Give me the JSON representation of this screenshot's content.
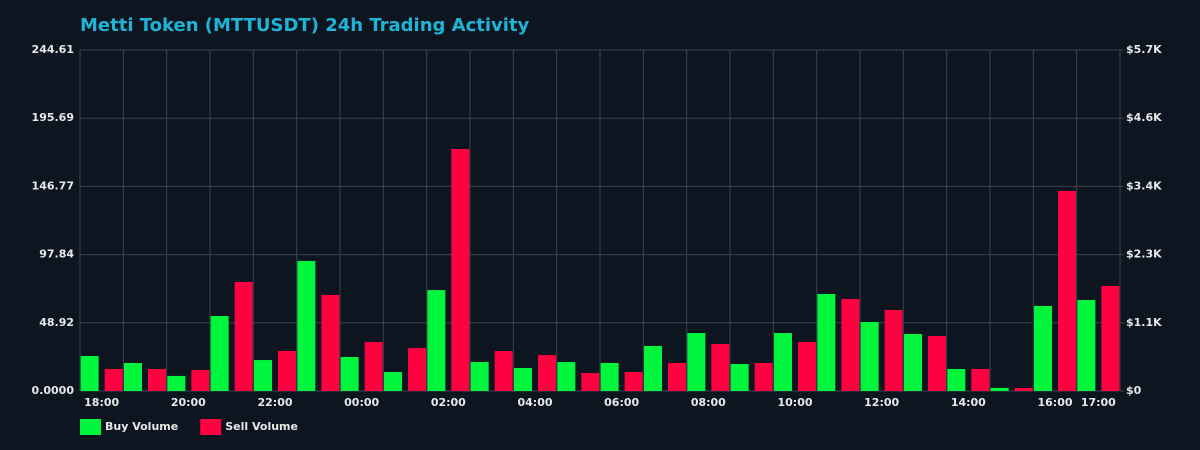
{
  "chart_data": {
    "type": "bar",
    "title": "Metti Token (MTTUSDT) 24h Trading Activity",
    "categories": [
      "18:00",
      null,
      "20:00",
      null,
      "22:00",
      null,
      "00:00",
      null,
      "02:00",
      null,
      "04:00",
      null,
      "06:00",
      null,
      "08:00",
      null,
      "10:00",
      null,
      "12:00",
      null,
      "14:00",
      null,
      "16:00",
      "17:00"
    ],
    "series": [
      {
        "name": "Buy Volume",
        "color": "#00f53d",
        "values": [
          25.1,
          20.1,
          10.8,
          53.8,
          22.2,
          93.3,
          24.4,
          13.6,
          72.4,
          20.8,
          16.5,
          20.8,
          20.1,
          32.3,
          41.6,
          19.4,
          41.6,
          69.6,
          49.5,
          40.9,
          15.8,
          2.2,
          61.0,
          65.3
        ]
      },
      {
        "name": "Sell Volume",
        "color": "#ff0040",
        "values": [
          15.8,
          15.8,
          15.1,
          78.2,
          28.7,
          68.9,
          35.1,
          30.8,
          173.6,
          28.7,
          25.8,
          12.9,
          13.6,
          20.1,
          33.7,
          20.1,
          35.1,
          66.0,
          58.1,
          39.5,
          15.8,
          2.2,
          143.5,
          75.3
        ]
      }
    ],
    "ylim": [
      0,
      244.61
    ],
    "yticks": [
      {
        "value": 0,
        "label": "0.0000"
      },
      48.92,
      97.84,
      146.77,
      195.69,
      244.61
    ],
    "y2lim": [
      0,
      5700
    ],
    "y2ticks": [
      {
        "value": 0,
        "label": "$0"
      },
      {
        "value": 1140,
        "label": "$1.1K"
      },
      {
        "value": 2280,
        "label": "$2.3K"
      },
      {
        "value": 3420,
        "label": "$3.4K"
      },
      {
        "value": 4560,
        "label": "$4.6K"
      },
      {
        "value": 5700,
        "label": "$5.7K"
      }
    ],
    "grid": true,
    "legend": "bottom-left"
  }
}
